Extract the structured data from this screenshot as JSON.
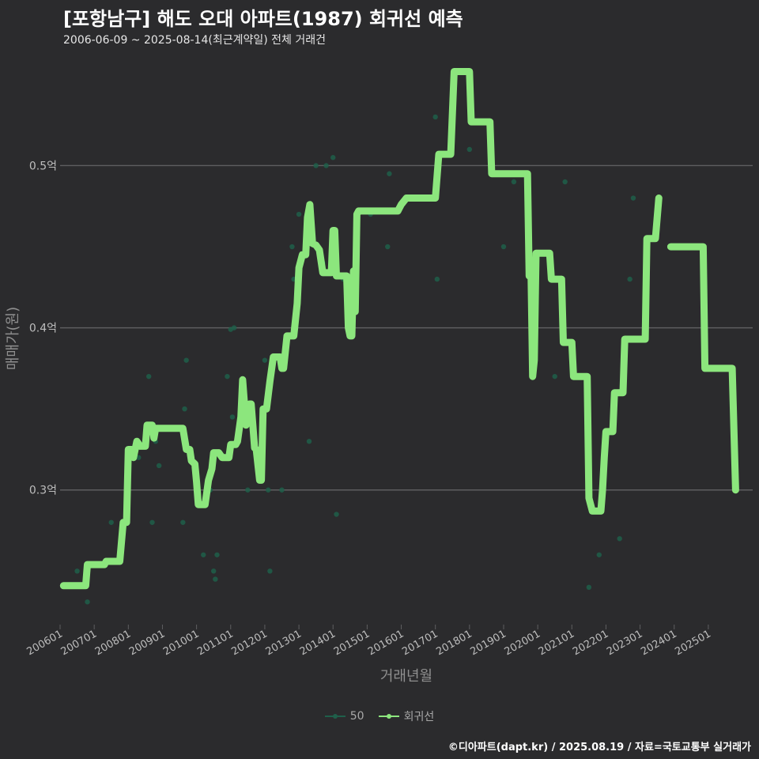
{
  "colors": {
    "background": "#2b2b2d",
    "grid": "#5e5e60",
    "axis_text": "#bdbdbd",
    "axis_title": "#8f8f8f",
    "trend_line": "#8ce67d",
    "points": "#1f5f4a"
  },
  "header": {
    "title": "[포항남구] 해도 오대 아파트(1987) 회귀선 예측",
    "subtitle": "2006-06-09 ~ 2025-08-14(최근계약일) 전체 거래건"
  },
  "legend": {
    "items": [
      {
        "label": "50",
        "color": "#1f5f4a"
      },
      {
        "label": "회귀선",
        "color": "#8ce67d"
      }
    ]
  },
  "caption": "©디아파트(dapt.kr) / 2025.08.19 / 자료=국토교통부 실거래가",
  "chart_data": {
    "type": "line",
    "title": "[포항남구] 해도 오대 아파트(1987) 회귀선 예측",
    "xlabel": "거래년월",
    "ylabel": "매매가(원)",
    "x_unit": "year (decimal)",
    "xlim": [
      2006.0,
      2026.3
    ],
    "ylim": [
      0.217,
      0.568
    ],
    "x_ticks": [
      {
        "value": 2006,
        "label": "200601"
      },
      {
        "value": 2007,
        "label": "200701"
      },
      {
        "value": 2008,
        "label": "200801"
      },
      {
        "value": 2009,
        "label": "200901"
      },
      {
        "value": 2010,
        "label": "201001"
      },
      {
        "value": 2011,
        "label": "201101"
      },
      {
        "value": 2012,
        "label": "201201"
      },
      {
        "value": 2013,
        "label": "201301"
      },
      {
        "value": 2014,
        "label": "201401"
      },
      {
        "value": 2015,
        "label": "201501"
      },
      {
        "value": 2016,
        "label": "201601"
      },
      {
        "value": 2017,
        "label": "201701"
      },
      {
        "value": 2018,
        "label": "201801"
      },
      {
        "value": 2019,
        "label": "201901"
      },
      {
        "value": 2020,
        "label": "202001"
      },
      {
        "value": 2021,
        "label": "202101"
      },
      {
        "value": 2022,
        "label": "202201"
      },
      {
        "value": 2023,
        "label": "202301"
      },
      {
        "value": 2024,
        "label": "202401"
      },
      {
        "value": 2025,
        "label": "202501"
      }
    ],
    "y_ticks": [
      {
        "value": 0.3,
        "label": "0.3억"
      },
      {
        "value": 0.4,
        "label": "0.4억"
      },
      {
        "value": 0.5,
        "label": "0.5억"
      }
    ],
    "series": [
      {
        "name": "50",
        "kind": "scatter",
        "points": [
          [
            2006.2,
            0.241
          ],
          [
            2006.5,
            0.25
          ],
          [
            2006.8,
            0.231
          ],
          [
            2007.5,
            0.28
          ],
          [
            2007.8,
            0.27
          ],
          [
            2008.3,
            0.32
          ],
          [
            2008.6,
            0.37
          ],
          [
            2008.7,
            0.28
          ],
          [
            2008.9,
            0.315
          ],
          [
            2008.8,
            0.33
          ],
          [
            2009.6,
            0.28
          ],
          [
            2009.65,
            0.35
          ],
          [
            2009.7,
            0.38
          ],
          [
            2010.2,
            0.26
          ],
          [
            2010.4,
            0.3
          ],
          [
            2010.5,
            0.25
          ],
          [
            2010.55,
            0.245
          ],
          [
            2010.6,
            0.26
          ],
          [
            2010.9,
            0.37
          ],
          [
            2011.0,
            0.399
          ],
          [
            2011.1,
            0.4
          ],
          [
            2011.05,
            0.345
          ],
          [
            2011.5,
            0.3
          ],
          [
            2012.0,
            0.38
          ],
          [
            2012.1,
            0.3
          ],
          [
            2012.15,
            0.25
          ],
          [
            2012.5,
            0.3
          ],
          [
            2012.8,
            0.45
          ],
          [
            2012.85,
            0.43
          ],
          [
            2012.9,
            0.4
          ],
          [
            2013.0,
            0.47
          ],
          [
            2013.3,
            0.33
          ],
          [
            2013.5,
            0.5
          ],
          [
            2013.7,
            0.44
          ],
          [
            2013.8,
            0.5
          ],
          [
            2014.0,
            0.505
          ],
          [
            2014.1,
            0.285
          ],
          [
            2014.3,
            0.43
          ],
          [
            2015.1,
            0.47
          ],
          [
            2015.6,
            0.45
          ],
          [
            2015.65,
            0.495
          ],
          [
            2017.0,
            0.53
          ],
          [
            2017.05,
            0.43
          ],
          [
            2018.0,
            0.51
          ],
          [
            2019.0,
            0.45
          ],
          [
            2019.3,
            0.49
          ],
          [
            2020.5,
            0.37
          ],
          [
            2020.8,
            0.49
          ],
          [
            2021.5,
            0.24
          ],
          [
            2021.8,
            0.26
          ],
          [
            2022.4,
            0.27
          ],
          [
            2022.7,
            0.43
          ],
          [
            2022.8,
            0.48
          ]
        ]
      },
      {
        "name": "회귀선",
        "kind": "line",
        "segments": [
          [
            [
              2006.1,
              0.241
            ],
            [
              2006.75,
              0.241
            ],
            [
              2006.8,
              0.254
            ],
            [
              2007.3,
              0.254
            ],
            [
              2007.35,
              0.256
            ],
            [
              2007.75,
              0.256
            ],
            [
              2007.85,
              0.28
            ],
            [
              2007.95,
              0.28
            ],
            [
              2008.0,
              0.325
            ],
            [
              2008.1,
              0.325
            ],
            [
              2008.15,
              0.32
            ],
            [
              2008.25,
              0.33
            ],
            [
              2008.35,
              0.327
            ],
            [
              2008.5,
              0.327
            ],
            [
              2008.55,
              0.34
            ],
            [
              2008.7,
              0.34
            ],
            [
              2008.75,
              0.332
            ],
            [
              2008.8,
              0.338
            ],
            [
              2009.0,
              0.338
            ],
            [
              2009.6,
              0.338
            ],
            [
              2009.7,
              0.325
            ],
            [
              2009.8,
              0.325
            ],
            [
              2009.85,
              0.318
            ],
            [
              2009.95,
              0.316
            ],
            [
              2010.0,
              0.305
            ],
            [
              2010.05,
              0.291
            ],
            [
              2010.25,
              0.291
            ],
            [
              2010.35,
              0.306
            ],
            [
              2010.45,
              0.313
            ],
            [
              2010.5,
              0.323
            ],
            [
              2010.65,
              0.323
            ],
            [
              2010.75,
              0.32
            ],
            [
              2010.95,
              0.32
            ],
            [
              2011.0,
              0.328
            ],
            [
              2011.15,
              0.328
            ],
            [
              2011.2,
              0.33
            ],
            [
              2011.3,
              0.345
            ],
            [
              2011.35,
              0.368
            ],
            [
              2011.45,
              0.34
            ],
            [
              2011.55,
              0.353
            ],
            [
              2011.6,
              0.353
            ],
            [
              2011.65,
              0.34
            ],
            [
              2011.7,
              0.326
            ],
            [
              2011.75,
              0.325
            ],
            [
              2011.85,
              0.306
            ],
            [
              2011.9,
              0.306
            ],
            [
              2011.95,
              0.35
            ],
            [
              2012.05,
              0.35
            ],
            [
              2012.15,
              0.367
            ],
            [
              2012.25,
              0.382
            ],
            [
              2012.45,
              0.382
            ],
            [
              2012.5,
              0.375
            ],
            [
              2012.55,
              0.375
            ],
            [
              2012.65,
              0.395
            ],
            [
              2012.85,
              0.395
            ],
            [
              2012.95,
              0.415
            ],
            [
              2013.0,
              0.437
            ],
            [
              2013.1,
              0.445
            ],
            [
              2013.2,
              0.445
            ],
            [
              2013.25,
              0.468
            ],
            [
              2013.32,
              0.476
            ],
            [
              2013.4,
              0.452
            ],
            [
              2013.5,
              0.451
            ],
            [
              2013.6,
              0.448
            ],
            [
              2013.7,
              0.434
            ],
            [
              2013.95,
              0.434
            ],
            [
              2014.0,
              0.46
            ],
            [
              2014.05,
              0.46
            ],
            [
              2014.1,
              0.432
            ],
            [
              2014.4,
              0.432
            ],
            [
              2014.45,
              0.4
            ],
            [
              2014.5,
              0.395
            ],
            [
              2014.55,
              0.395
            ],
            [
              2014.6,
              0.435
            ],
            [
              2014.65,
              0.41
            ],
            [
              2014.7,
              0.47
            ],
            [
              2014.75,
              0.472
            ],
            [
              2015.9,
              0.472
            ],
            [
              2016.0,
              0.476
            ],
            [
              2016.15,
              0.48
            ],
            [
              2017.0,
              0.48
            ],
            [
              2017.1,
              0.507
            ],
            [
              2017.45,
              0.507
            ],
            [
              2017.55,
              0.558
            ],
            [
              2018.0,
              0.558
            ],
            [
              2018.05,
              0.527
            ],
            [
              2018.6,
              0.527
            ],
            [
              2018.65,
              0.495
            ],
            [
              2019.7,
              0.495
            ],
            [
              2019.75,
              0.432
            ],
            [
              2019.8,
              0.44
            ],
            [
              2019.85,
              0.37
            ],
            [
              2019.9,
              0.38
            ],
            [
              2019.95,
              0.446
            ],
            [
              2020.35,
              0.446
            ],
            [
              2020.4,
              0.43
            ],
            [
              2020.7,
              0.43
            ],
            [
              2020.75,
              0.391
            ],
            [
              2021.0,
              0.391
            ],
            [
              2021.05,
              0.37
            ],
            [
              2021.45,
              0.37
            ],
            [
              2021.5,
              0.295
            ],
            [
              2021.6,
              0.287
            ],
            [
              2021.85,
              0.287
            ],
            [
              2021.9,
              0.3
            ],
            [
              2021.95,
              0.32
            ],
            [
              2022.0,
              0.336
            ],
            [
              2022.2,
              0.336
            ],
            [
              2022.25,
              0.36
            ],
            [
              2022.5,
              0.36
            ],
            [
              2022.55,
              0.393
            ],
            [
              2023.15,
              0.393
            ],
            [
              2023.2,
              0.455
            ],
            [
              2023.45,
              0.455
            ],
            [
              2023.55,
              0.48
            ]
          ],
          [
            [
              2023.9,
              0.45
            ],
            [
              2024.85,
              0.45
            ],
            [
              2024.9,
              0.375
            ],
            [
              2025.7,
              0.375
            ],
            [
              2025.8,
              0.3
            ]
          ]
        ]
      }
    ]
  }
}
